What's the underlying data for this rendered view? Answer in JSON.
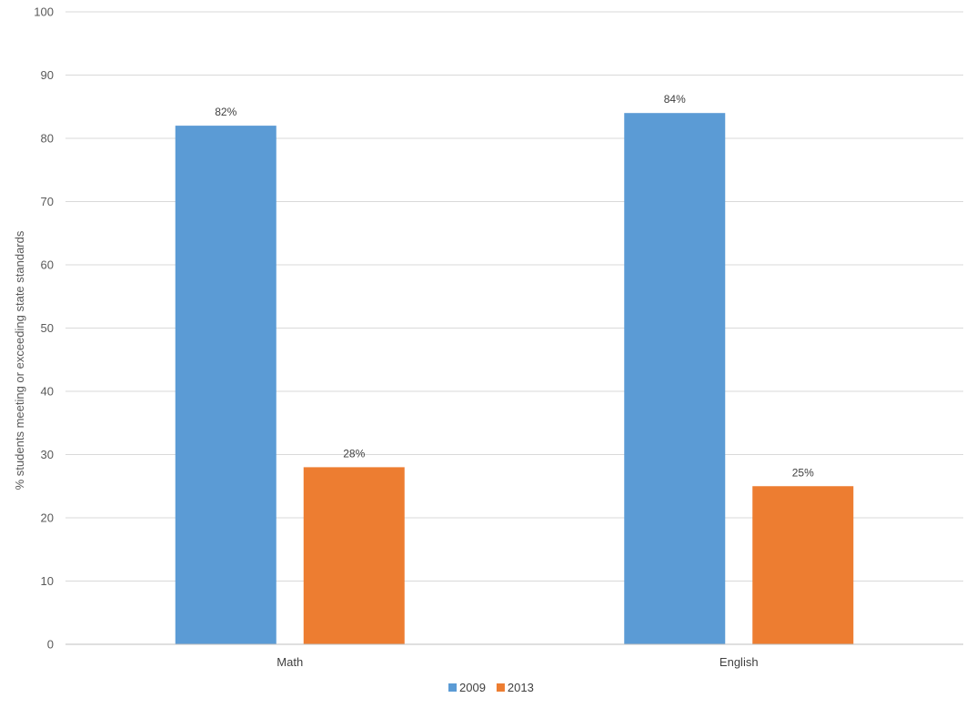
{
  "chart_data": {
    "type": "bar",
    "categories": [
      "Math",
      "English"
    ],
    "series": [
      {
        "name": "2009",
        "values": [
          82,
          84
        ],
        "labels": [
          "82%",
          "84%"
        ],
        "color": "#5b9bd5"
      },
      {
        "name": "2013",
        "values": [
          28,
          25
        ],
        "labels": [
          "28%",
          "25%"
        ],
        "color": "#ed7d31"
      }
    ],
    "ylabel": "% students meeting or exceeding state standards",
    "xlabel": "",
    "ylim": [
      0,
      100
    ],
    "yticks": [
      0,
      10,
      20,
      30,
      40,
      50,
      60,
      70,
      80,
      90,
      100
    ],
    "grid": true,
    "legend_position": "bottom"
  }
}
